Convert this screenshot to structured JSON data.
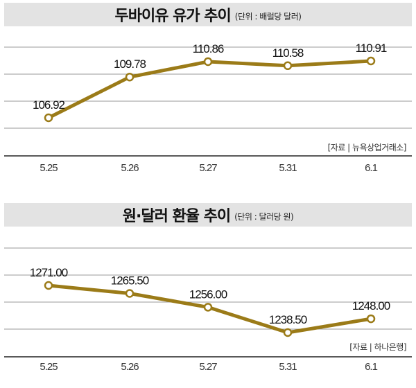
{
  "chart_data": [
    {
      "type": "line",
      "title": "두바이유 유가 추이",
      "unit": "(단위 : 배럴당 달러)",
      "source": "[자료 | 뉴욕상업거래소]",
      "categories": [
        "5.25",
        "5.26",
        "5.27",
        "5.31",
        "6.1"
      ],
      "values": [
        106.92,
        109.78,
        110.86,
        110.58,
        110.91
      ],
      "value_labels": [
        "106.92",
        "109.78",
        "110.86",
        "110.58",
        "110.91"
      ],
      "ylim": [
        105,
        112
      ],
      "grid": true,
      "color": "#9b7b18"
    },
    {
      "type": "line",
      "title": "원·달러 환율 추이",
      "unit": "(단위 : 달러당 원)",
      "source": "[자료 | 하나은행]",
      "categories": [
        "5.25",
        "5.26",
        "5.27",
        "5.31",
        "6.1"
      ],
      "values": [
        1271.0,
        1265.5,
        1256.0,
        1238.5,
        1248.0
      ],
      "value_labels": [
        "1271.00",
        "1265.50",
        "1256.00",
        "1238.50",
        "1248.00"
      ],
      "ylim": [
        1230,
        1285
      ],
      "grid": true,
      "color": "#9b7b18"
    }
  ]
}
